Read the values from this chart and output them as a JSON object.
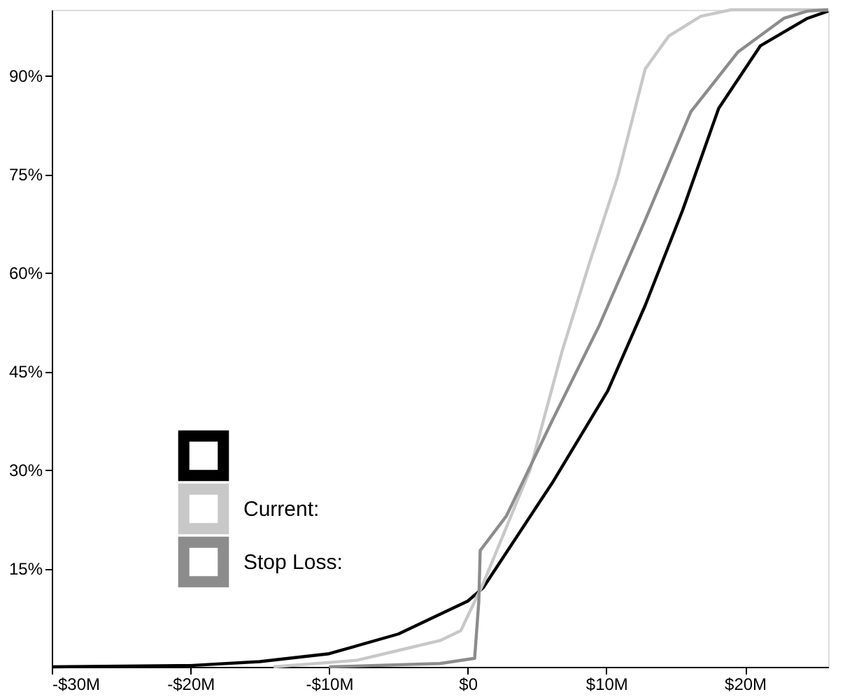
{
  "chart_data": {
    "type": "line",
    "xlim": [
      -30,
      26
    ],
    "ylim": [
      0,
      100
    ],
    "xticks": [
      {
        "value": -30,
        "label": "-$30M"
      },
      {
        "value": -20,
        "label": "-$20M"
      },
      {
        "value": -10,
        "label": "-$10M"
      },
      {
        "value": 0,
        "label": "$0"
      },
      {
        "value": 10,
        "label": "$10M"
      },
      {
        "value": 20,
        "label": "$20M"
      }
    ],
    "yticks": [
      {
        "value": 15,
        "label": "15%"
      },
      {
        "value": 30,
        "label": "30%"
      },
      {
        "value": 45,
        "label": "45%"
      },
      {
        "value": 60,
        "label": "60%"
      },
      {
        "value": 75,
        "label": "75%"
      },
      {
        "value": 90,
        "label": "90%"
      }
    ],
    "grid": false,
    "legend": "bottom left",
    "marker": "none",
    "line_style": "solid",
    "series": [
      {
        "color": "#000000",
        "x": [
          -30,
          -20,
          -15,
          -10,
          -5,
          -2,
          0,
          1.1,
          6.1,
          10.1,
          12.8,
          15.5,
          18.1,
          21.1,
          24.5,
          26
        ],
        "values": [
          0,
          0.2,
          0.8,
          2,
          5,
          8,
          10,
          12,
          28,
          42,
          55,
          69.5,
          85,
          94.5,
          98.7,
          99.8
        ]
      },
      {
        "name": "Current:",
        "color": "#c8c8c8",
        "x": [
          -14,
          -8,
          -5,
          -2,
          -0.5,
          1.1,
          4.5,
          6.8,
          8.8,
          10.8,
          12.8,
          14.5,
          16.8,
          19,
          26
        ],
        "values": [
          0,
          1,
          2.5,
          4,
          5.5,
          12.6,
          30,
          48,
          61.6,
          74.5,
          91,
          96,
          99,
          100,
          100
        ]
      },
      {
        "name": "Stop Loss:",
        "color": "#8c8c8c",
        "x": [
          -10,
          -2,
          0.5,
          0.8,
          0.9,
          2.8,
          6.1,
          9.5,
          12.8,
          16.1,
          19.5,
          22.8,
          24.5,
          26
        ],
        "values": [
          0,
          0.5,
          1.3,
          10,
          17.7,
          23,
          37.5,
          52,
          68,
          84.5,
          93.6,
          98.7,
          99.8,
          100
        ]
      }
    ]
  }
}
